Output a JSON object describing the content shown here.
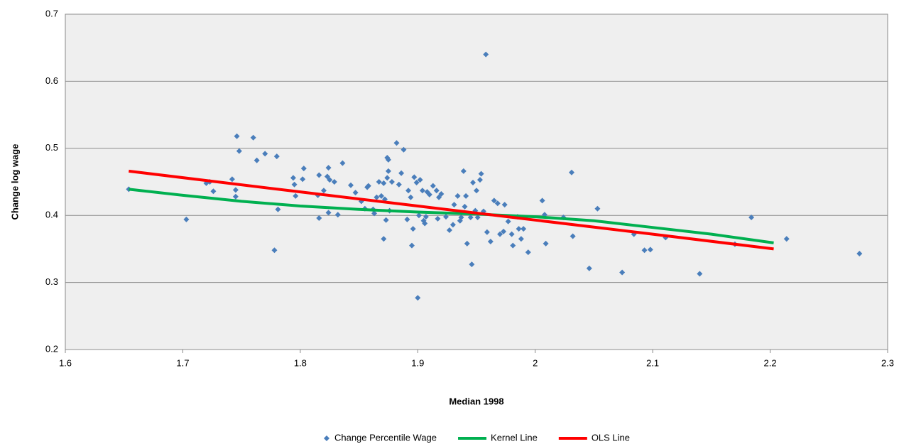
{
  "chart_data": {
    "type": "scatter",
    "xlabel": "Median 1998",
    "ylabel": "Change log wage",
    "xlim": [
      1.6,
      2.3
    ],
    "xticks": [
      1.6,
      1.7,
      1.8,
      1.9,
      2,
      2.1,
      2.2,
      2.3
    ],
    "ylim": [
      0.2,
      0.7
    ],
    "yticks": [
      0.2,
      0.3,
      0.4,
      0.5,
      0.6,
      0.7
    ],
    "grid": true,
    "legend": "bottom",
    "series": [
      {
        "name": "Change Percentile Wage",
        "type": "scatter",
        "color": "#4a7ebb",
        "x": [
          1.654,
          1.703,
          1.72,
          1.723,
          1.726,
          1.742,
          1.745,
          1.745,
          1.746,
          1.748,
          1.76,
          1.763,
          1.77,
          1.78,
          1.781,
          1.778,
          1.794,
          1.795,
          1.796,
          1.802,
          1.803,
          1.815,
          1.816,
          1.816,
          1.82,
          1.823,
          1.824,
          1.824,
          1.825,
          1.829,
          1.832,
          1.836,
          1.843,
          1.847,
          1.852,
          1.855,
          1.857,
          1.858,
          1.862,
          1.863,
          1.865,
          1.867,
          1.869,
          1.871,
          1.872,
          1.871,
          1.873,
          1.874,
          1.874,
          1.875,
          1.875,
          1.876,
          1.878,
          1.882,
          1.884,
          1.886,
          1.888,
          1.891,
          1.892,
          1.894,
          1.895,
          1.896,
          1.897,
          1.899,
          1.9,
          1.901,
          1.902,
          1.904,
          1.905,
          1.906,
          1.907,
          1.908,
          1.91,
          1.913,
          1.916,
          1.917,
          1.918,
          1.92,
          1.924,
          1.927,
          1.93,
          1.931,
          1.934,
          1.936,
          1.937,
          1.939,
          1.94,
          1.941,
          1.942,
          1.945,
          1.946,
          1.947,
          1.949,
          1.95,
          1.951,
          1.953,
          1.954,
          1.956,
          1.958,
          1.959,
          1.962,
          1.965,
          1.968,
          1.97,
          1.973,
          1.974,
          1.977,
          1.98,
          1.981,
          1.985,
          1.986,
          1.988,
          1.99,
          1.994,
          2.006,
          2.008,
          2.009,
          2.024,
          2.031,
          2.032,
          2.046,
          2.053,
          2.074,
          2.084,
          2.093,
          2.098,
          2.111,
          2.14,
          2.17,
          2.184,
          2.214,
          2.276
        ],
        "y": [
          0.439,
          0.394,
          0.448,
          0.45,
          0.436,
          0.454,
          0.438,
          0.428,
          0.518,
          0.496,
          0.516,
          0.482,
          0.492,
          0.488,
          0.409,
          0.348,
          0.456,
          0.446,
          0.429,
          0.454,
          0.47,
          0.43,
          0.46,
          0.396,
          0.437,
          0.458,
          0.471,
          0.404,
          0.453,
          0.45,
          0.401,
          0.478,
          0.445,
          0.434,
          0.421,
          0.41,
          0.442,
          0.444,
          0.409,
          0.403,
          0.427,
          0.45,
          0.429,
          0.448,
          0.424,
          0.365,
          0.393,
          0.456,
          0.486,
          0.483,
          0.466,
          0.407,
          0.45,
          0.508,
          0.446,
          0.463,
          0.498,
          0.394,
          0.437,
          0.427,
          0.355,
          0.38,
          0.457,
          0.449,
          0.277,
          0.4,
          0.453,
          0.437,
          0.392,
          0.388,
          0.398,
          0.435,
          0.431,
          0.444,
          0.437,
          0.395,
          0.427,
          0.432,
          0.398,
          0.378,
          0.386,
          0.416,
          0.429,
          0.392,
          0.397,
          0.466,
          0.413,
          0.429,
          0.358,
          0.397,
          0.327,
          0.449,
          0.407,
          0.437,
          0.397,
          0.453,
          0.462,
          0.406,
          0.64,
          0.375,
          0.361,
          0.422,
          0.418,
          0.372,
          0.376,
          0.416,
          0.391,
          0.372,
          0.355,
          0.398,
          0.38,
          0.365,
          0.38,
          0.345,
          0.422,
          0.401,
          0.358,
          0.397,
          0.464,
          0.369,
          0.321,
          0.41,
          0.315,
          0.372,
          0.348,
          0.349,
          0.367,
          0.313,
          0.357,
          0.397,
          0.365,
          0.343
        ]
      },
      {
        "name": "Kernel Line",
        "type": "line",
        "color": "#00b050",
        "x": [
          1.654,
          1.7,
          1.75,
          1.8,
          1.85,
          1.9,
          1.95,
          2.0,
          2.05,
          2.1,
          2.15,
          2.203
        ],
        "y": [
          0.439,
          0.43,
          0.421,
          0.414,
          0.409,
          0.405,
          0.402,
          0.398,
          0.392,
          0.382,
          0.372,
          0.359
        ]
      },
      {
        "name": "OLS Line",
        "type": "line",
        "color": "#ff0000",
        "x": [
          1.654,
          1.8,
          1.9,
          2.0,
          2.1,
          2.203
        ],
        "y": [
          0.466,
          0.435,
          0.414,
          0.393,
          0.372,
          0.35
        ]
      }
    ]
  }
}
